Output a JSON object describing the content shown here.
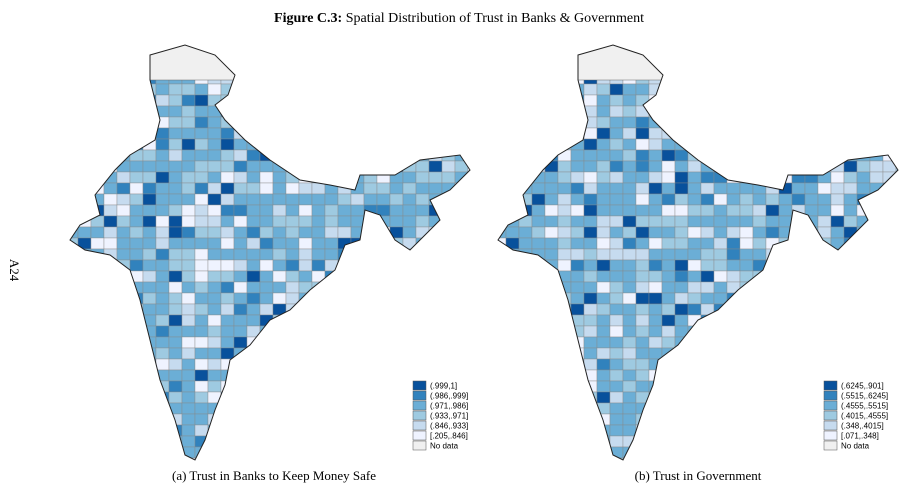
{
  "page_number": "A24",
  "figure": {
    "label": "Figure C.3:",
    "title": "Spatial Distribution of Trust in Banks & Government"
  },
  "panels": [
    {
      "caption": "(a) Trust in Banks to Keep Money Safe",
      "legend": [
        {
          "label": "(.999,1]",
          "color": "#08519c"
        },
        {
          "label": "(.986,.999]",
          "color": "#3182bd"
        },
        {
          "label": "(.971,.986]",
          "color": "#6baed6"
        },
        {
          "label": "(.933,.971]",
          "color": "#9ecae1"
        },
        {
          "label": "(.846,.933]",
          "color": "#c6dbef"
        },
        {
          "label": "[.205,.846]",
          "color": "#eff3ff"
        },
        {
          "label": "No data",
          "color": "#f0f0f0"
        }
      ]
    },
    {
      "caption": "(b) Trust in Government",
      "legend": [
        {
          "label": "(.6245,.901]",
          "color": "#08519c"
        },
        {
          "label": "(.5515,.6245]",
          "color": "#3182bd"
        },
        {
          "label": "(.4555,.5515]",
          "color": "#6baed6"
        },
        {
          "label": "(.4015,.4555]",
          "color": "#9ecae1"
        },
        {
          "label": "(.348,.4015]",
          "color": "#c6dbef"
        },
        {
          "label": "[.071,.348]",
          "color": "#eff3ff"
        },
        {
          "label": "No data",
          "color": "#f0f0f0"
        }
      ]
    }
  ]
}
